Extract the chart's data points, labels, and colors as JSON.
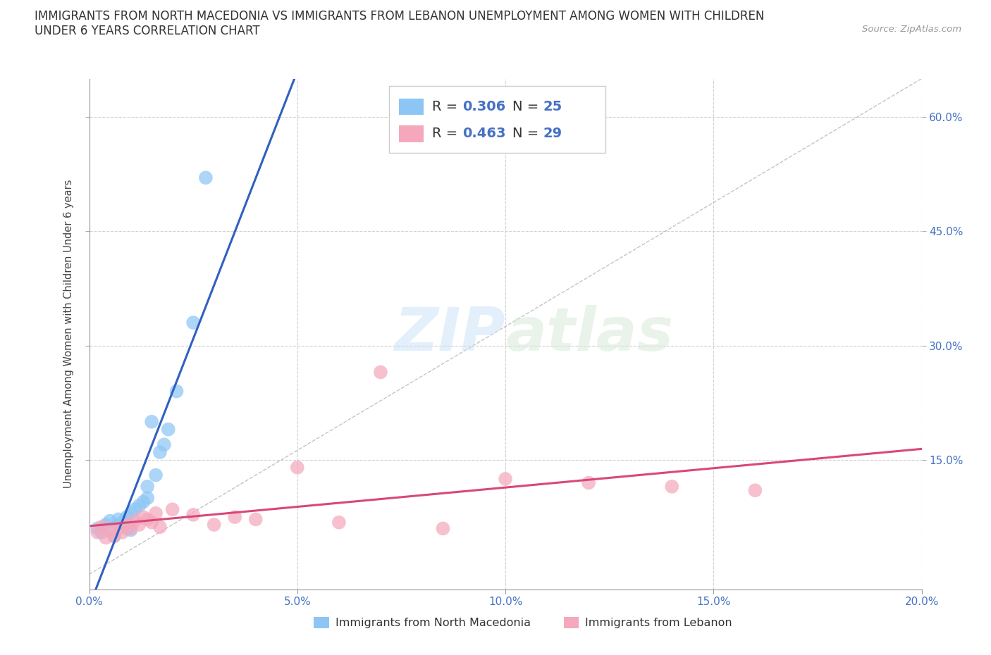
{
  "title_line1": "IMMIGRANTS FROM NORTH MACEDONIA VS IMMIGRANTS FROM LEBANON UNEMPLOYMENT AMONG WOMEN WITH CHILDREN",
  "title_line2": "UNDER 6 YEARS CORRELATION CHART",
  "source_text": "Source: ZipAtlas.com",
  "ylabel": "Unemployment Among Women with Children Under 6 years",
  "xlim": [
    0.0,
    0.2
  ],
  "ylim": [
    -0.02,
    0.65
  ],
  "xticks": [
    0.0,
    0.05,
    0.1,
    0.15,
    0.2
  ],
  "xticklabels": [
    "0.0%",
    "5.0%",
    "10.0%",
    "15.0%",
    "20.0%"
  ],
  "ytick_values": [
    0.15,
    0.3,
    0.45,
    0.6
  ],
  "ytick_labels": [
    "15.0%",
    "30.0%",
    "45.0%",
    "60.0%"
  ],
  "r_mac": 0.306,
  "n_mac": 25,
  "r_leb": 0.463,
  "n_leb": 29,
  "color_mac": "#8dc6f5",
  "color_leb": "#f5a8bc",
  "line_color_mac": "#3060c0",
  "line_color_leb": "#d84878",
  "legend_label_mac": "Immigrants from North Macedonia",
  "legend_label_leb": "Immigrants from Lebanon",
  "tick_color": "#4472c4",
  "background_color": "#ffffff",
  "grid_color": "#d0d0d0",
  "mac_x": [
    0.002,
    0.003,
    0.004,
    0.005,
    0.006,
    0.007,
    0.007,
    0.008,
    0.009,
    0.009,
    0.01,
    0.01,
    0.011,
    0.012,
    0.013,
    0.014,
    0.014,
    0.015,
    0.016,
    0.017,
    0.018,
    0.019,
    0.021,
    0.025,
    0.028
  ],
  "mac_y": [
    0.06,
    0.055,
    0.065,
    0.07,
    0.05,
    0.065,
    0.072,
    0.068,
    0.06,
    0.075,
    0.058,
    0.08,
    0.085,
    0.09,
    0.095,
    0.1,
    0.115,
    0.2,
    0.13,
    0.16,
    0.17,
    0.19,
    0.24,
    0.33,
    0.52
  ],
  "leb_x": [
    0.002,
    0.003,
    0.004,
    0.005,
    0.006,
    0.007,
    0.008,
    0.009,
    0.01,
    0.011,
    0.012,
    0.013,
    0.014,
    0.015,
    0.016,
    0.017,
    0.02,
    0.025,
    0.03,
    0.035,
    0.04,
    0.05,
    0.06,
    0.07,
    0.085,
    0.1,
    0.12,
    0.14,
    0.16
  ],
  "leb_y": [
    0.055,
    0.062,
    0.048,
    0.058,
    0.05,
    0.06,
    0.055,
    0.065,
    0.06,
    0.07,
    0.065,
    0.075,
    0.072,
    0.068,
    0.08,
    0.062,
    0.085,
    0.078,
    0.065,
    0.075,
    0.072,
    0.14,
    0.068,
    0.265,
    0.06,
    0.125,
    0.12,
    0.115,
    0.11
  ]
}
